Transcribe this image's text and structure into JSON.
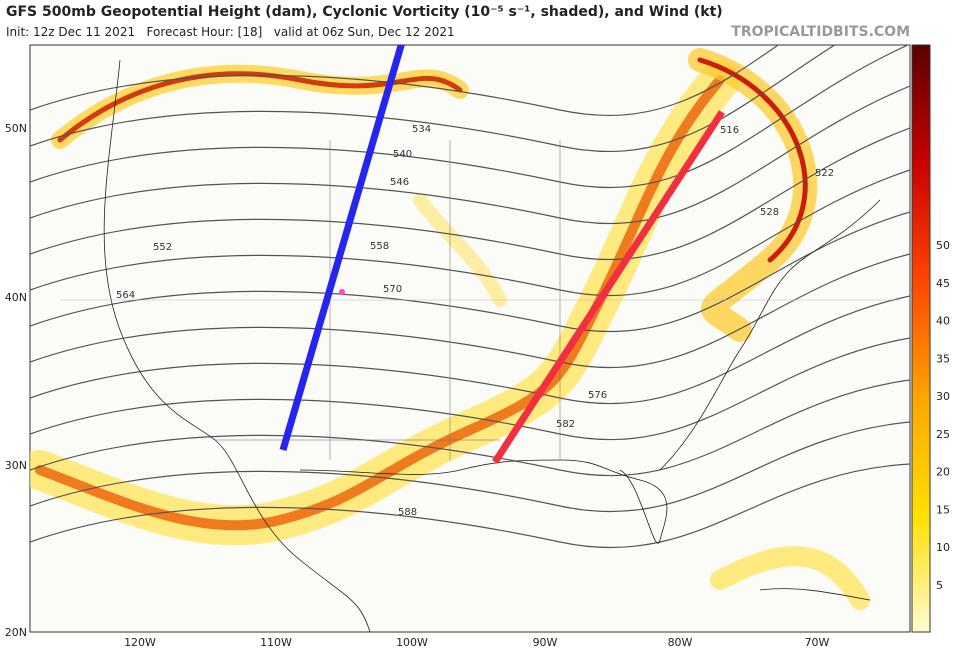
{
  "header": {
    "title": "GFS 500mb Geopotential Height (dam), Cyclonic Vorticity (10⁻⁵ s⁻¹, shaded), and Wind (kt)",
    "subtitle": "Init: 12z Dec 11 2021   Forecast Hour: [18]   valid at 06z Sun, Dec 12 2021",
    "credit": "TROPICALTIDBITS.COM"
  },
  "map": {
    "lat_labels": [
      "50N",
      "40N",
      "30N",
      "20N"
    ],
    "lon_labels": [
      "120W",
      "110W",
      "100W",
      "90W",
      "80W",
      "70W"
    ],
    "contour_labels": [
      "516",
      "522",
      "528",
      "534",
      "540",
      "546",
      "552",
      "558",
      "564",
      "570",
      "576",
      "582",
      "588"
    ]
  },
  "colorbar": {
    "ticks": [
      "5",
      "10",
      "15",
      "20",
      "25",
      "30",
      "35",
      "40",
      "45",
      "50"
    ]
  }
}
